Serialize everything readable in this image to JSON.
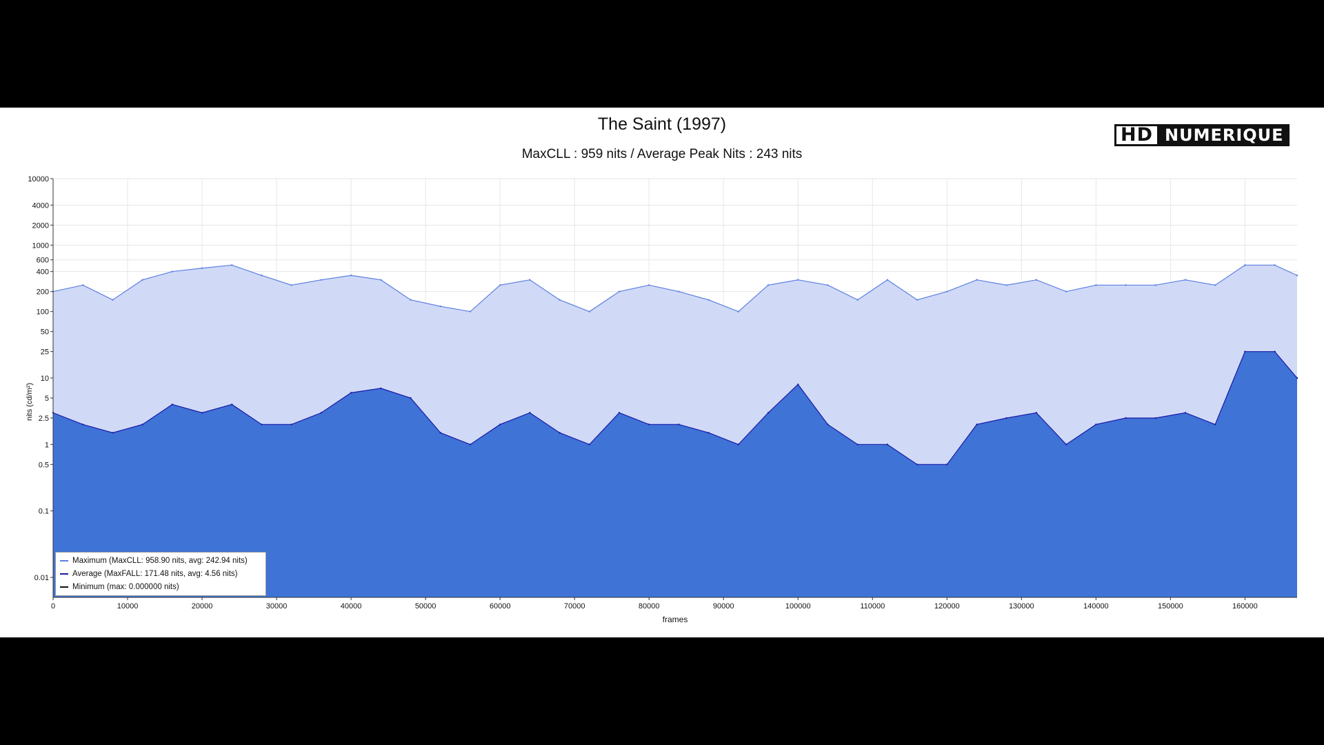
{
  "chart_data": {
    "type": "area",
    "title": "The Saint (1997)",
    "subtitle": "MaxCLL : 959 nits / Average Peak Nits : 243 nits",
    "xlabel": "frames",
    "ylabel": "nits (cd/m²)",
    "y_scale": "log",
    "xlim": [
      0,
      167000
    ],
    "ylim": [
      0.005,
      10000
    ],
    "x_ticks": [
      0,
      10000,
      20000,
      30000,
      40000,
      50000,
      60000,
      70000,
      80000,
      90000,
      100000,
      110000,
      120000,
      130000,
      140000,
      150000,
      160000
    ],
    "x_tick_labels": [
      "0",
      "10000",
      "20000",
      "30000",
      "40000",
      "50000",
      "60000",
      "70000",
      "80000",
      "90000",
      "100000",
      "110000",
      "120000",
      "130000",
      "140000",
      "150000",
      "160000"
    ],
    "y_ticks": [
      0.01,
      0.1,
      0.5,
      1,
      2.5,
      5,
      10,
      25,
      50,
      100,
      200,
      400,
      600,
      1000,
      2000,
      4000,
      10000
    ],
    "y_tick_labels": [
      "0.01",
      "0.1",
      "0.5",
      "1",
      "2.5",
      "5",
      "10",
      "25",
      "50",
      "100",
      "200",
      "400",
      "600",
      "1000",
      "2000",
      "4000",
      "10000"
    ],
    "grid": true,
    "legend_position": "bottom-left",
    "x": [
      0,
      4000,
      8000,
      12000,
      16000,
      20000,
      24000,
      28000,
      32000,
      36000,
      40000,
      44000,
      48000,
      52000,
      56000,
      60000,
      64000,
      68000,
      72000,
      76000,
      80000,
      84000,
      88000,
      92000,
      96000,
      100000,
      104000,
      108000,
      112000,
      116000,
      120000,
      124000,
      128000,
      132000,
      136000,
      140000,
      144000,
      148000,
      152000,
      156000,
      160000,
      164000,
      167000
    ],
    "series": [
      {
        "name": "Maximum (MaxCLL: 958.90 nits, avg: 242.94 nits)",
        "color": "#5b7ee0",
        "fill": "#d0daf7",
        "values": [
          200,
          250,
          150,
          300,
          400,
          450,
          500,
          350,
          250,
          300,
          350,
          300,
          150,
          120,
          100,
          250,
          300,
          150,
          100,
          200,
          250,
          200,
          150,
          100,
          250,
          300,
          250,
          150,
          300,
          150,
          200,
          300,
          250,
          300,
          200,
          250,
          250,
          250,
          300,
          250,
          500,
          500,
          350
        ]
      },
      {
        "name": "Average (MaxFALL: 171.48 nits, avg: 4.56 nits)",
        "color": "#1a1aa8",
        "fill": "#3f73d6",
        "values": [
          3,
          2,
          1.5,
          2,
          4,
          3,
          4,
          2,
          2,
          3,
          6,
          7,
          5,
          1.5,
          1,
          2,
          3,
          1.5,
          1,
          3,
          2,
          2,
          1.5,
          1,
          3,
          8,
          2,
          1,
          1,
          0.5,
          0.5,
          2,
          2.5,
          3,
          1,
          2,
          2.5,
          2.5,
          3,
          2,
          25,
          25,
          10
        ]
      },
      {
        "name": "Minimum (max: 0.000000 nits)",
        "color": "#111111",
        "values": [
          0,
          0,
          0,
          0,
          0,
          0,
          0,
          0,
          0,
          0,
          0,
          0,
          0,
          0,
          0,
          0,
          0,
          0,
          0,
          0,
          0,
          0,
          0,
          0,
          0,
          0,
          0,
          0,
          0,
          0,
          0,
          0,
          0,
          0,
          0,
          0,
          0,
          0,
          0,
          0,
          0,
          0,
          0
        ]
      }
    ]
  },
  "brand": {
    "logo_part1": "HD",
    "logo_part2": "NUMERIQUE"
  }
}
